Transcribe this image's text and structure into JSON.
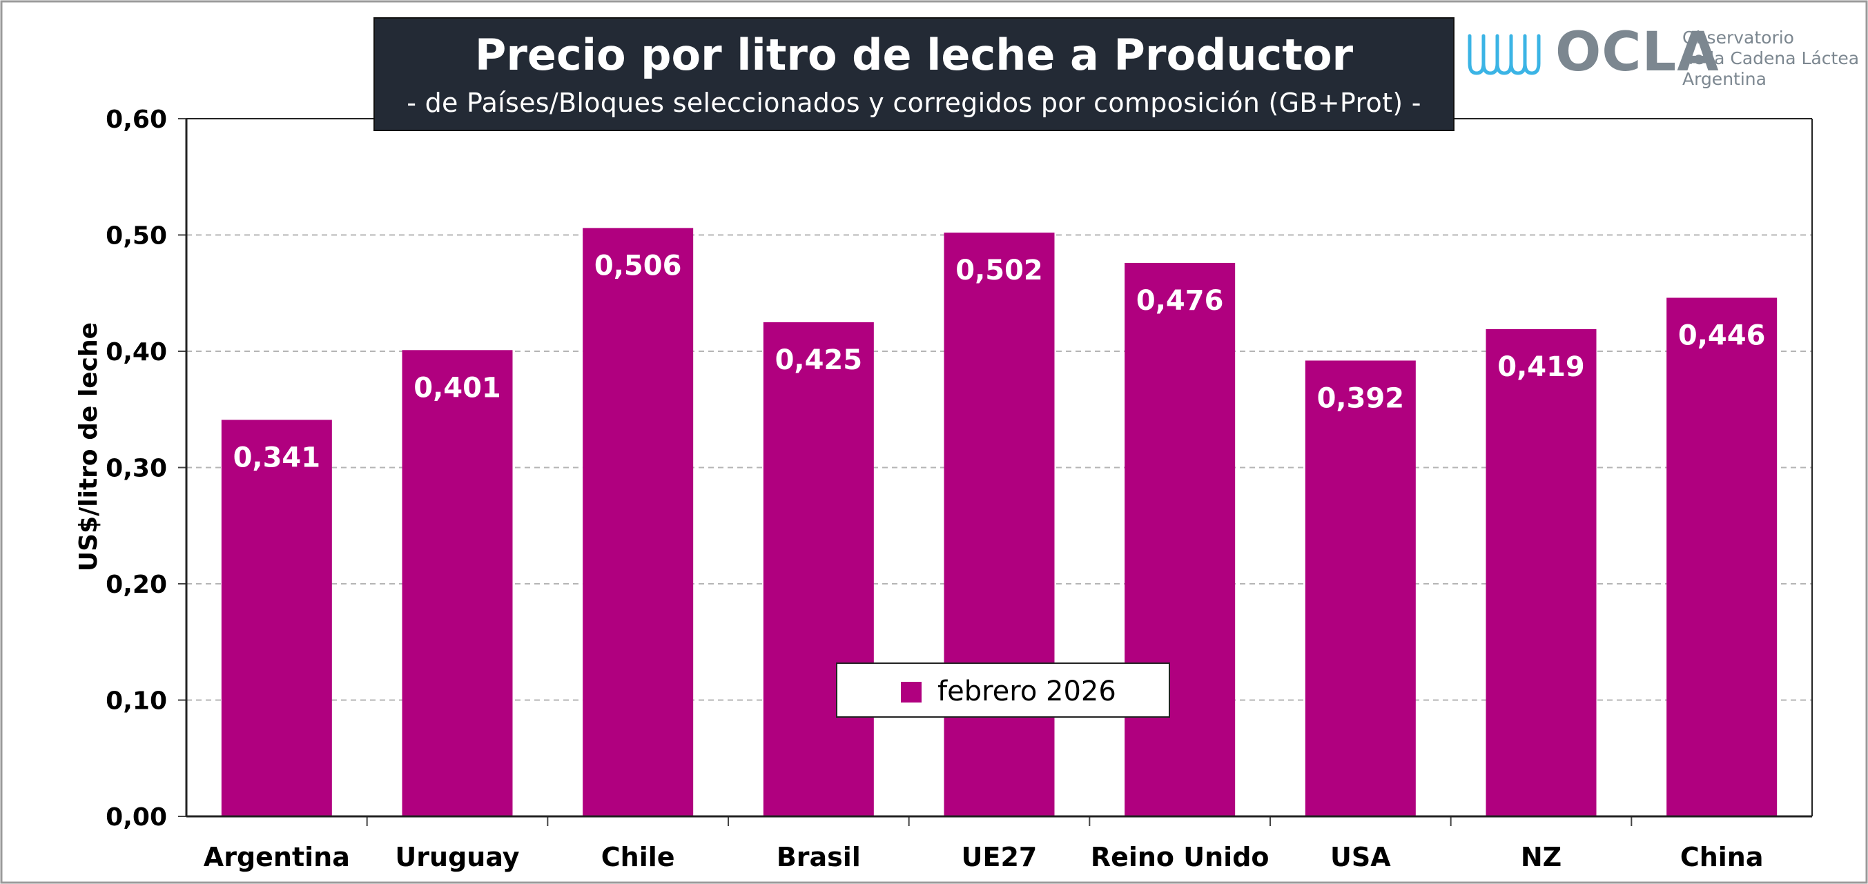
{
  "title": "Precio por litro de leche a Productor",
  "subtitle": "-  de Países/Bloques seleccionados y corregidos por composición (GB+Prot) -",
  "logo": {
    "brand": "OCLA",
    "line1": "Observatorio",
    "line2": "de la Cadena Láctea",
    "line3": "Argentina",
    "icon": "milk-wave-icon"
  },
  "colors": {
    "bar": "#b0007f",
    "title_bg": "#232a35",
    "logo_accent": "#3bb4e5",
    "logo_gray": "#7c8790"
  },
  "chart_data": {
    "type": "bar",
    "categories": [
      "Argentina",
      "Uruguay",
      "Chile",
      "Brasil",
      "UE27",
      "Reino Unido",
      "USA",
      "NZ",
      "China"
    ],
    "series": [
      {
        "name": "febrero 2026",
        "values": [
          0.341,
          0.401,
          0.506,
          0.425,
          0.502,
          0.476,
          0.392,
          0.419,
          0.446
        ]
      }
    ],
    "value_labels": [
      "0,341",
      "0,401",
      "0,506",
      "0,425",
      "0,502",
      "0,476",
      "0,392",
      "0,419",
      "0,446"
    ],
    "ylabel": "US$/litro de leche",
    "ylim": [
      0,
      0.6
    ],
    "yticks": [
      0,
      0.1,
      0.2,
      0.3,
      0.4,
      0.5,
      0.6
    ],
    "ytick_labels": [
      "0,00",
      "0,10",
      "0,20",
      "0,30",
      "0,40",
      "0,50",
      "0,60"
    ],
    "grid": true,
    "legend_position": "bottom-center"
  }
}
